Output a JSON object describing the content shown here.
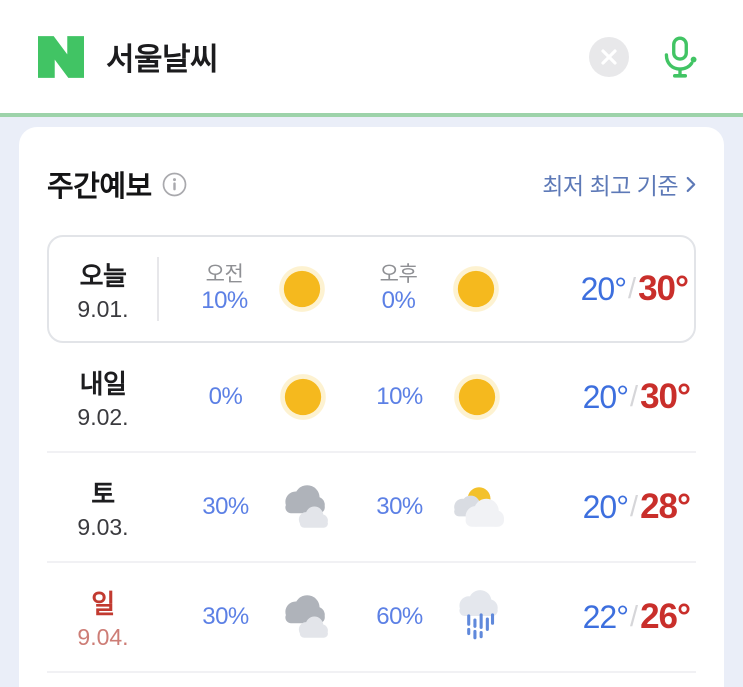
{
  "search_bar": {
    "query": "서울날씨",
    "logo_icon": "naver-n-logo",
    "clear_icon": "clear-circle",
    "mic_icon": "microphone",
    "brand_green": "#41c464"
  },
  "panel": {
    "title": "주간예보",
    "info_icon": "info-circle",
    "legend_link": "최저 최고 기준",
    "legend_chevron": "›"
  },
  "labels": {
    "temp_separator": "/"
  },
  "colors": {
    "percent_blue": "#5c80e5",
    "low_temp_blue": "#3d6fde",
    "high_temp_red": "#c92f2b",
    "sunday_red": "#c23a30",
    "link_blue": "#5d79b7",
    "sun_yellow": "#f5b91e",
    "background": "#eaeef8"
  },
  "forecast_rows": [
    {
      "day": "오늘",
      "date": "9.01.",
      "am": {
        "time_label": "오전",
        "percent": "10%",
        "icon": "sun"
      },
      "pm": {
        "time_label": "오후",
        "percent": "0%",
        "icon": "sun"
      },
      "low": "20°",
      "high": "30°"
    },
    {
      "day": "내일",
      "date": "9.02.",
      "am": {
        "percent": "0%",
        "icon": "sun"
      },
      "pm": {
        "percent": "10%",
        "icon": "sun"
      },
      "low": "20°",
      "high": "30°"
    },
    {
      "day": "토",
      "date": "9.03.",
      "am": {
        "percent": "30%",
        "icon": "cloudy"
      },
      "pm": {
        "percent": "30%",
        "icon": "partly-sunny"
      },
      "low": "20°",
      "high": "28°"
    },
    {
      "day": "일",
      "date": "9.04.",
      "sunday": true,
      "am": {
        "percent": "30%",
        "icon": "cloudy"
      },
      "pm": {
        "percent": "60%",
        "icon": "rain-cloud"
      },
      "low": "22°",
      "high": "26°"
    }
  ]
}
